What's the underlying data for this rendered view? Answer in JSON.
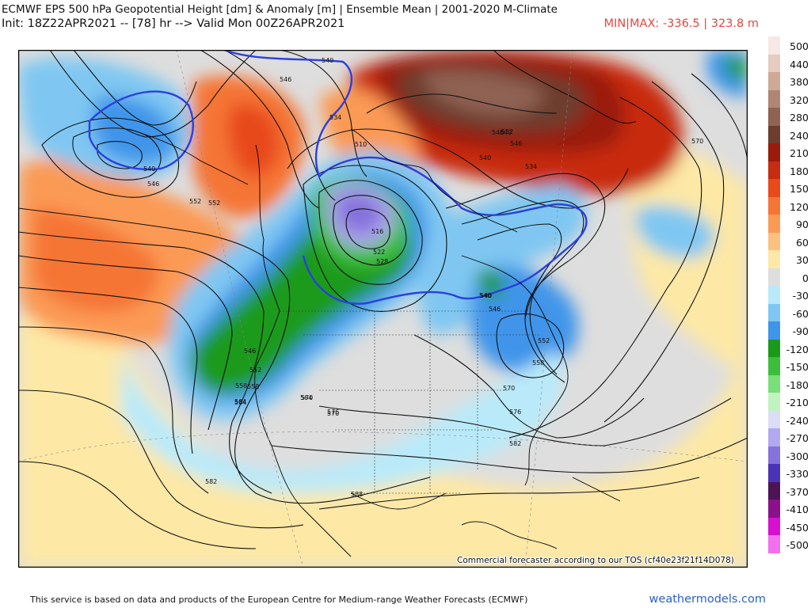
{
  "header": {
    "title": "ECMWF EPS 500 hPa Geopotential Height [dm] & Anomaly [m] | Ensemble Mean | 2001-2020 M-Climate",
    "init_line": "Init: 18Z22APR2021 -- [78] hr --> Valid Mon 00Z26APR2021",
    "minmax": "MIN|MAX: -336.5 | 323.8 m"
  },
  "colors": {
    "minmax": "#e8453c",
    "site_link": "#2a5fd1",
    "map_frame": "#000000"
  },
  "legend": [
    {
      "label": "500",
      "color": "#f6e8e4"
    },
    {
      "label": "440",
      "color": "#e6cbc0"
    },
    {
      "label": "380",
      "color": "#cfa998"
    },
    {
      "label": "320",
      "color": "#b08573"
    },
    {
      "label": "280",
      "color": "#8f6252"
    },
    {
      "label": "240",
      "color": "#6d3d2f"
    },
    {
      "label": "210",
      "color": "#9a1a0c"
    },
    {
      "label": "180",
      "color": "#c82c10"
    },
    {
      "label": "150",
      "color": "#e84a1a"
    },
    {
      "label": "120",
      "color": "#f57534"
    },
    {
      "label": "90",
      "color": "#fb9a55"
    },
    {
      "label": "60",
      "color": "#fcc07f"
    },
    {
      "label": "30",
      "color": "#fde8a6"
    },
    {
      "label": "0",
      "color": "#dedede"
    },
    {
      "label": "-30",
      "color": "#b9eaf9"
    },
    {
      "label": "-60",
      "color": "#7fc7f2"
    },
    {
      "label": "-90",
      "color": "#3f95ea"
    },
    {
      "label": "-120",
      "color": "#1a9a1a"
    },
    {
      "label": "-150",
      "color": "#3cbe3c"
    },
    {
      "label": "-180",
      "color": "#79df79"
    },
    {
      "label": "-210",
      "color": "#c1f3bf"
    },
    {
      "label": "-240",
      "color": "#dcdcf7"
    },
    {
      "label": "-270",
      "color": "#b1a9ef"
    },
    {
      "label": "-300",
      "color": "#8672db"
    },
    {
      "label": "-330",
      "color": "#4b33b7"
    },
    {
      "label": "-370",
      "color": "#4c1454"
    },
    {
      "label": "-410",
      "color": "#8c0f8c"
    },
    {
      "label": "-450",
      "color": "#d60fd0"
    },
    {
      "label": "-500",
      "color": "#f46fef"
    }
  ],
  "contour_labels": [
    "540",
    "546",
    "534",
    "540",
    "546",
    "552",
    "552",
    "546",
    "540",
    "534",
    "540",
    "546",
    "552",
    "570",
    "516",
    "522",
    "528",
    "510",
    "540",
    "546",
    "552",
    "558",
    "564",
    "540",
    "546",
    "552",
    "558",
    "564",
    "570",
    "576",
    "570",
    "576",
    "582",
    "582",
    "588",
    "564",
    "558",
    "570"
  ],
  "map_text": {
    "tos_note": "Commercial forecaster according to our TOS (cf40e23f21f14D078)"
  },
  "footer": {
    "text": "This service is based on data and products of the European Centre for Medium-range Weather Forecasts (ECMWF)",
    "site": "weathermodels.com"
  }
}
